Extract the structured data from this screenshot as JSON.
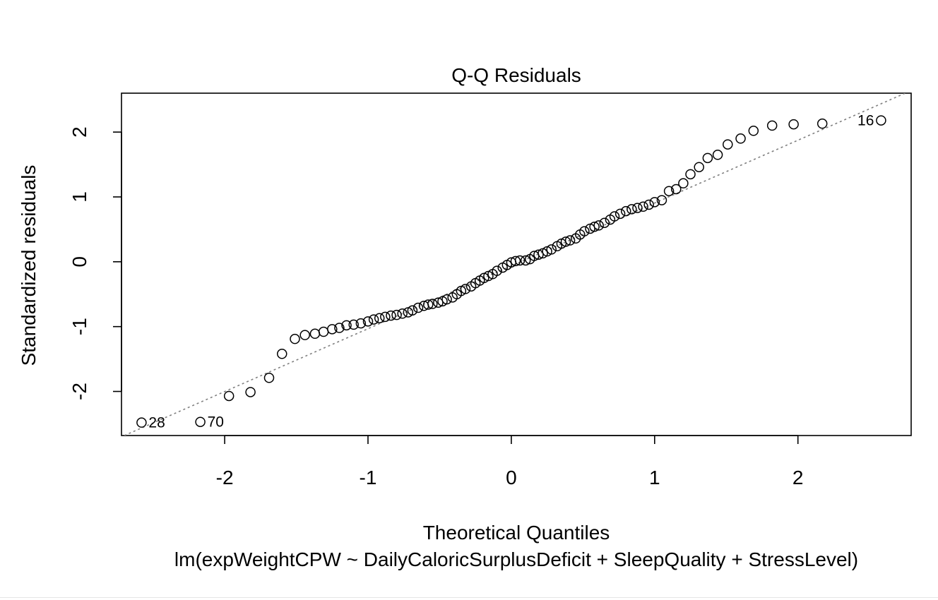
{
  "chart_data": {
    "type": "scatter",
    "title": "Q-Q Residuals",
    "xlabel": "Theoretical Quantiles",
    "ylabel": "Standardized residuals",
    "subtitle": "lm(expWeightCPW ~ DailyCaloricSurplusDeficit + SleepQuality + StressLevel)",
    "xlim": [
      -2.72,
      2.79
    ],
    "ylim": [
      -2.68,
      2.6
    ],
    "x_ticks": [
      -2,
      -1,
      0,
      1,
      2
    ],
    "y_ticks": [
      -2,
      -1,
      0,
      1,
      2
    ],
    "reference_line": {
      "style": "dotted",
      "color": "#7f7f7f",
      "points": [
        [
          -2.7,
          -2.68
        ],
        [
          2.79,
          2.64
        ]
      ]
    },
    "grid": false,
    "marker": "open-circle",
    "point_labels": [
      {
        "label": "28",
        "x": -2.58,
        "y": -2.48
      },
      {
        "label": "70",
        "x": -2.17,
        "y": -2.47
      },
      {
        "label": "16",
        "x": 2.58,
        "y": 2.18
      }
    ],
    "points": [
      [
        -2.58,
        -2.48
      ],
      [
        -2.17,
        -2.47
      ],
      [
        -1.97,
        -2.07
      ],
      [
        -1.82,
        -2.01
      ],
      [
        -1.69,
        -1.79
      ],
      [
        -1.6,
        -1.42
      ],
      [
        -1.51,
        -1.19
      ],
      [
        -1.44,
        -1.13
      ],
      [
        -1.37,
        -1.11
      ],
      [
        -1.31,
        -1.08
      ],
      [
        -1.25,
        -1.04
      ],
      [
        -1.2,
        -1.02
      ],
      [
        -1.15,
        -0.98
      ],
      [
        -1.1,
        -0.97
      ],
      [
        -1.05,
        -0.95
      ],
      [
        -1.0,
        -0.92
      ],
      [
        -0.96,
        -0.89
      ],
      [
        -0.92,
        -0.87
      ],
      [
        -0.88,
        -0.85
      ],
      [
        -0.84,
        -0.83
      ],
      [
        -0.8,
        -0.82
      ],
      [
        -0.76,
        -0.8
      ],
      [
        -0.72,
        -0.78
      ],
      [
        -0.69,
        -0.75
      ],
      [
        -0.65,
        -0.71
      ],
      [
        -0.61,
        -0.68
      ],
      [
        -0.58,
        -0.66
      ],
      [
        -0.55,
        -0.65
      ],
      [
        -0.51,
        -0.63
      ],
      [
        -0.48,
        -0.61
      ],
      [
        -0.45,
        -0.58
      ],
      [
        -0.41,
        -0.55
      ],
      [
        -0.38,
        -0.5
      ],
      [
        -0.35,
        -0.45
      ],
      [
        -0.32,
        -0.42
      ],
      [
        -0.28,
        -0.38
      ],
      [
        -0.25,
        -0.33
      ],
      [
        -0.22,
        -0.29
      ],
      [
        -0.19,
        -0.25
      ],
      [
        -0.16,
        -0.22
      ],
      [
        -0.13,
        -0.19
      ],
      [
        -0.1,
        -0.14
      ],
      [
        -0.06,
        -0.09
      ],
      [
        -0.03,
        -0.05
      ],
      [
        0.0,
        -0.01
      ],
      [
        0.03,
        0.01
      ],
      [
        0.06,
        0.02
      ],
      [
        0.1,
        0.02
      ],
      [
        0.13,
        0.04
      ],
      [
        0.16,
        0.09
      ],
      [
        0.19,
        0.11
      ],
      [
        0.22,
        0.13
      ],
      [
        0.25,
        0.16
      ],
      [
        0.28,
        0.19
      ],
      [
        0.32,
        0.24
      ],
      [
        0.35,
        0.28
      ],
      [
        0.38,
        0.31
      ],
      [
        0.41,
        0.33
      ],
      [
        0.45,
        0.36
      ],
      [
        0.48,
        0.42
      ],
      [
        0.51,
        0.47
      ],
      [
        0.55,
        0.51
      ],
      [
        0.58,
        0.54
      ],
      [
        0.61,
        0.56
      ],
      [
        0.65,
        0.6
      ],
      [
        0.69,
        0.65
      ],
      [
        0.72,
        0.7
      ],
      [
        0.76,
        0.74
      ],
      [
        0.8,
        0.78
      ],
      [
        0.84,
        0.81
      ],
      [
        0.88,
        0.83
      ],
      [
        0.92,
        0.85
      ],
      [
        0.96,
        0.88
      ],
      [
        1.0,
        0.92
      ],
      [
        1.05,
        0.95
      ],
      [
        1.1,
        1.09
      ],
      [
        1.15,
        1.12
      ],
      [
        1.2,
        1.21
      ],
      [
        1.25,
        1.35
      ],
      [
        1.31,
        1.46
      ],
      [
        1.37,
        1.6
      ],
      [
        1.44,
        1.65
      ],
      [
        1.51,
        1.81
      ],
      [
        1.6,
        1.9
      ],
      [
        1.69,
        2.02
      ],
      [
        1.82,
        2.1
      ],
      [
        1.97,
        2.12
      ],
      [
        2.17,
        2.13
      ],
      [
        2.58,
        2.18
      ]
    ]
  }
}
